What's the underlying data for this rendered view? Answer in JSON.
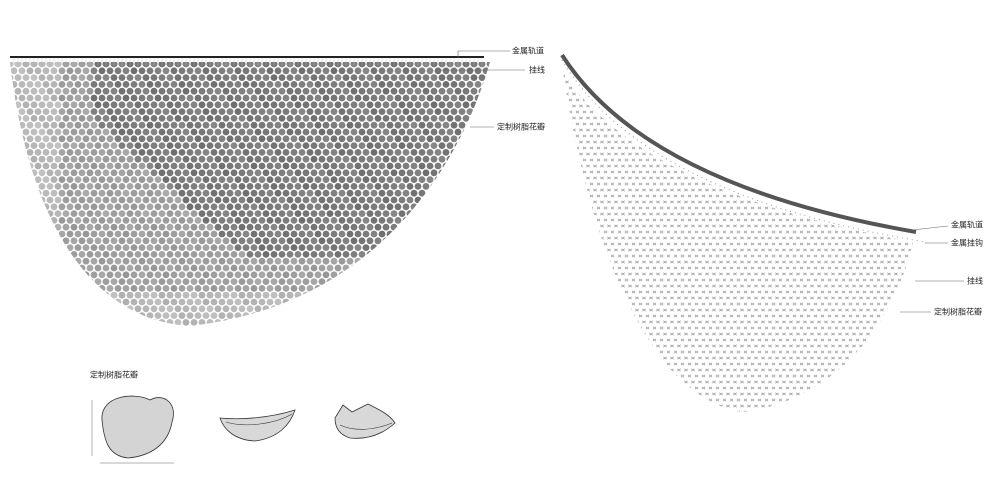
{
  "left_view": {
    "labels": [
      "金属轨道",
      "挂线",
      "定制树脂花瓣"
    ]
  },
  "right_view": {
    "labels": [
      "金属轨道",
      "金属挂钩",
      "挂线",
      "定制树脂花瓣"
    ]
  },
  "petal_detail": {
    "title": "定制树脂花瓣"
  }
}
